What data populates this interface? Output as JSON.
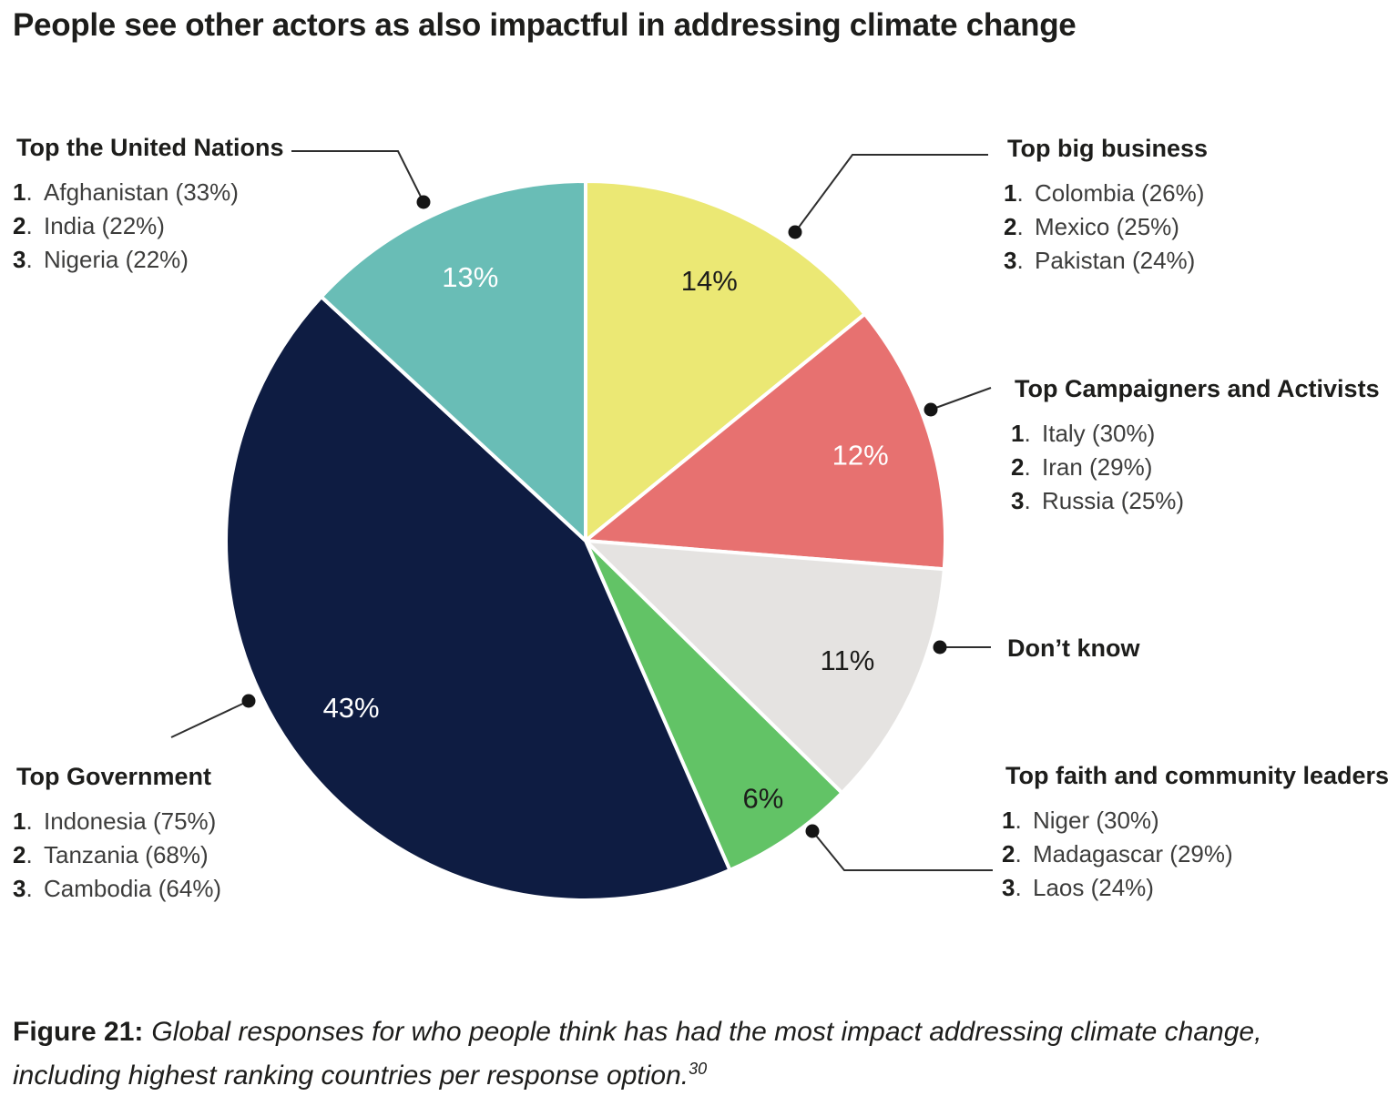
{
  "title": "People see other actors as also impactful in addressing climate change",
  "caption": {
    "label": "Figure 21:",
    "text": "Global responses for who people think has had the most impact addressing climate change, including highest ranking countries per response option.",
    "footnote": "30"
  },
  "chart_data": {
    "type": "pie",
    "title": "People see other actors as also impactful in addressing climate change",
    "direction": "clockwise",
    "start_angle_deg": 0,
    "total_pct": 99,
    "slices": [
      {
        "id": "big_business",
        "label": "Top big business",
        "value_pct": 14,
        "color": "#ebe874",
        "pct_label": "14%",
        "pct_label_color": "#1d1d1b"
      },
      {
        "id": "campaigners",
        "label": "Top Campaigners and Activists",
        "value_pct": 12,
        "color": "#e77170",
        "pct_label": "12%",
        "pct_label_color": "#ffffff"
      },
      {
        "id": "dont_know",
        "label": "Don’t know",
        "value_pct": 11,
        "color": "#e5e3e1",
        "pct_label": "11%",
        "pct_label_color": "#1d1d1b"
      },
      {
        "id": "faith",
        "label": "Top faith and community leaders",
        "value_pct": 6,
        "color": "#62c366",
        "pct_label": "6%",
        "pct_label_color": "#1d1d1b"
      },
      {
        "id": "government",
        "label": "Top Government",
        "value_pct": 43,
        "color": "#0e1c42",
        "pct_label": "43%",
        "pct_label_color": "#ffffff"
      },
      {
        "id": "united_nations",
        "label": "Top the United Nations",
        "value_pct": 13,
        "color": "#69bdb6",
        "pct_label": "13%",
        "pct_label_color": "#ffffff"
      }
    ]
  },
  "callouts": {
    "united_nations": {
      "title": "Top the United Nations",
      "items": [
        {
          "rank": "1",
          "text": "Afghanistan (33%)"
        },
        {
          "rank": "2",
          "text": "India (22%)"
        },
        {
          "rank": "3",
          "text": "Nigeria (22%)"
        }
      ]
    },
    "big_business": {
      "title": "Top big business",
      "items": [
        {
          "rank": "1",
          "text": "Colombia (26%)"
        },
        {
          "rank": "2",
          "text": "Mexico (25%)"
        },
        {
          "rank": "3",
          "text": "Pakistan (24%)"
        }
      ]
    },
    "campaigners": {
      "title": "Top Campaigners and Activists",
      "items": [
        {
          "rank": "1",
          "text": "Italy (30%)"
        },
        {
          "rank": "2",
          "text": "Iran (29%)"
        },
        {
          "rank": "3",
          "text": "Russia (25%)"
        }
      ]
    },
    "dont_know": {
      "title": "Don’t know",
      "items": []
    },
    "faith": {
      "title": "Top faith and community leaders",
      "items": [
        {
          "rank": "1",
          "text": "Niger (30%)"
        },
        {
          "rank": "2",
          "text": "Madagascar (29%)"
        },
        {
          "rank": "3",
          "text": "Laos (24%)"
        }
      ]
    },
    "government": {
      "title": "Top Government",
      "items": [
        {
          "rank": "1",
          "text": "Indonesia (75%)"
        },
        {
          "rank": "2",
          "text": "Tanzania (68%)"
        },
        {
          "rank": "3",
          "text": "Cambodia (64%)"
        }
      ]
    }
  }
}
